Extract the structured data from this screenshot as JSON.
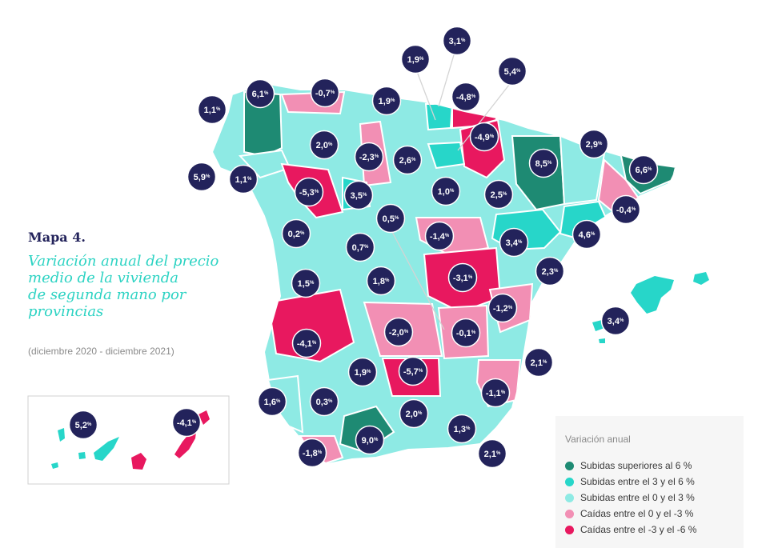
{
  "heading": {
    "label": "Mapa 4.",
    "title_lines": [
      "Variación anual del precio",
      "medio de la vivienda",
      "de segunda mano por",
      "provincias"
    ],
    "subtitle": "(diciembre 2020 - diciembre 2021)"
  },
  "colors": {
    "dark_teal": "#1e8a73",
    "teal": "#27d6c9",
    "light_teal": "#8eeae4",
    "pink": "#f28fb4",
    "magenta": "#e8185f",
    "navy": "#23235b",
    "legend_bg": "#f6f6f6"
  },
  "legend": {
    "title": "Variación anual",
    "items": [
      {
        "label": "Subidas superiores al 6 %",
        "color": "#1e8a73"
      },
      {
        "label": "Subidas entre el 3 y el 6 %",
        "color": "#27d6c9"
      },
      {
        "label": "Subidas entre el 0 y el 3 %",
        "color": "#8eeae4"
      },
      {
        "label": "Caídas entre el 0 y el -3 %",
        "color": "#f28fb4"
      },
      {
        "label": "Caídas entre el -3 y el -6 %",
        "color": "#e8185f"
      }
    ]
  },
  "badges": [
    "6,1",
    "-0,7",
    "1,1",
    "1,9",
    "3,1",
    "1,9",
    "5,4",
    "-4,8",
    "2,0",
    "-2,3",
    "2,6",
    "-4,9",
    "8,5",
    "2,9",
    "5,9",
    "1,1",
    "-5,3",
    "3,5",
    "1,0",
    "2,5",
    "6,6",
    "-0,4",
    "0,5",
    "0,2",
    "-1,4",
    "3,4",
    "4,6",
    "0,7",
    "1,5",
    "1,8",
    "-3,1",
    "2,3",
    "-1,2",
    "3,4",
    "-4,1",
    "-2,0",
    "-0,1",
    "1,9",
    "-5,7",
    "2,1",
    "1,6",
    "0,3",
    "-1,1",
    "2,0",
    "1,3",
    "9,0",
    "-1,8",
    "2,1",
    "5,2",
    "-4,1"
  ],
  "badge_unit": "%"
}
